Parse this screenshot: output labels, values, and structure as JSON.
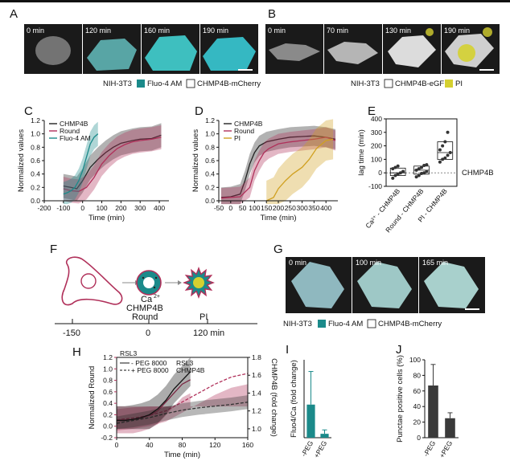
{
  "panel_letters": {
    "A": "A",
    "B": "B",
    "C": "C",
    "D": "D",
    "E": "E",
    "F": "F",
    "G": "G",
    "H": "H",
    "I": "I",
    "J": "J"
  },
  "panelA": {
    "times": [
      "0 min",
      "120 min",
      "160 min",
      "190 min"
    ],
    "caption_cell": "NIH-3T3",
    "caption_l1": "Fluo-4 AM",
    "caption_l2": "CHMP4B-mCherry"
  },
  "panelB": {
    "times": [
      "0 min",
      "70 min",
      "130 min",
      "190 min"
    ],
    "caption_cell": "NIH-3T3",
    "caption_l1": "CHMP4B-eGFP",
    "caption_l2": "PI"
  },
  "panelG": {
    "times": [
      "0 min",
      "100 min",
      "165 min"
    ],
    "caption_cell": "NIH-3T3",
    "caption_l1": "Fluo-4 AM",
    "caption_l2": "CHMP4B-mCherry"
  },
  "colors": {
    "teal": "#1b8a8a",
    "magenta": "#b0305a",
    "yellow": "#d4d030",
    "gray": "#555555",
    "dark": "#222222",
    "shade_teal": "#9fd0cf",
    "shade_pink": "#e8aec6",
    "shade_gray": "#c8c8c8",
    "shade_yellow": "#ecebb8"
  },
  "chart_data": [
    {
      "id": "C",
      "type": "line",
      "xlabel": "Time (min)",
      "ylabel": "Normalized values",
      "xlim": [
        -200,
        450
      ],
      "ylim": [
        0,
        1.2
      ],
      "xticks": [
        -200,
        -100,
        0,
        100,
        200,
        300,
        400
      ],
      "yticks": [
        0.0,
        0.2,
        0.4,
        0.6,
        0.8,
        1.0,
        1.2
      ],
      "legend": [
        "CHMP4B",
        "Round",
        "Fluo-4 AM"
      ],
      "series": [
        {
          "name": "CHMP4B",
          "x": [
            -100,
            -60,
            -30,
            0,
            40,
            80,
            120,
            160,
            200,
            260,
            300,
            360,
            410
          ],
          "y": [
            0.22,
            0.2,
            0.18,
            0.3,
            0.5,
            0.62,
            0.72,
            0.8,
            0.86,
            0.9,
            0.92,
            0.93,
            0.98
          ]
        },
        {
          "name": "Round",
          "x": [
            -100,
            -60,
            -20,
            20,
            60,
            100,
            140,
            180,
            220,
            260,
            300,
            360,
            410
          ],
          "y": [
            0.18,
            0.15,
            0.14,
            0.2,
            0.35,
            0.55,
            0.68,
            0.78,
            0.84,
            0.88,
            0.9,
            0.92,
            0.95
          ]
        },
        {
          "name": "Fluo-4 AM",
          "x": [
            -100,
            -80,
            -60,
            -40,
            -20,
            0,
            20,
            40,
            60,
            80
          ],
          "y": [
            0.1,
            0.12,
            0.15,
            0.2,
            0.3,
            0.45,
            0.65,
            0.85,
            0.95,
            1.0
          ]
        }
      ]
    },
    {
      "id": "D",
      "type": "line",
      "xlabel": "Time (min)",
      "ylabel": "Normalized values",
      "xlim": [
        -50,
        450
      ],
      "ylim": [
        0,
        1.2
      ],
      "xticks": [
        -50,
        0,
        50,
        100,
        150,
        200,
        250,
        300,
        350,
        400
      ],
      "yticks": [
        0.0,
        0.2,
        0.4,
        0.6,
        0.8,
        1.0,
        1.2
      ],
      "legend": [
        "CHMP4B",
        "Round",
        "PI"
      ],
      "series": [
        {
          "name": "CHMP4B",
          "x": [
            -40,
            0,
            40,
            60,
            80,
            100,
            120,
            150,
            200,
            250,
            300,
            350,
            400,
            440
          ],
          "y": [
            0.05,
            0.06,
            0.1,
            0.3,
            0.55,
            0.72,
            0.82,
            0.88,
            0.92,
            0.95,
            0.96,
            0.97,
            0.95,
            0.92
          ]
        },
        {
          "name": "Round",
          "x": [
            -40,
            0,
            40,
            80,
            100,
            120,
            140,
            160,
            200,
            250,
            300,
            350,
            400,
            440
          ],
          "y": [
            0.04,
            0.05,
            0.06,
            0.2,
            0.45,
            0.6,
            0.72,
            0.78,
            0.85,
            0.88,
            0.9,
            0.92,
            0.95,
            0.9
          ]
        },
        {
          "name": "PI",
          "x": [
            150,
            180,
            200,
            230,
            260,
            300,
            330,
            360,
            400,
            430
          ],
          "y": [
            0.0,
            0.05,
            0.18,
            0.3,
            0.4,
            0.5,
            0.62,
            0.78,
            0.9,
            0.92
          ]
        }
      ]
    },
    {
      "id": "E",
      "type": "box",
      "ylabel": "lag time (min)",
      "ylim": [
        -100,
        400
      ],
      "yticks": [
        -100,
        0,
        100,
        200,
        300,
        400
      ],
      "categories": [
        "Ca²⁺ - CHMP4B",
        "Round - CHMP4B",
        "PI - CHMP4B"
      ],
      "ref_label": "CHMP4B",
      "groups": [
        {
          "points": [
            -40,
            -20,
            -10,
            0,
            10,
            30,
            40,
            50
          ],
          "q1": -20,
          "median": 0,
          "q3": 35
        },
        {
          "points": [
            -30,
            -20,
            -5,
            0,
            10,
            20,
            30,
            40,
            55,
            60
          ],
          "q1": -10,
          "median": 20,
          "q3": 50
        },
        {
          "points": [
            80,
            100,
            110,
            130,
            150,
            170,
            200,
            230,
            300
          ],
          "q1": 100,
          "median": 150,
          "q3": 230
        }
      ]
    },
    {
      "id": "F",
      "type": "timeline",
      "ticks": [
        "-150",
        "0",
        "120 min"
      ],
      "labels": [
        "Ca",
        "2+",
        "CHMP4B",
        "Round",
        "PI"
      ]
    },
    {
      "id": "H",
      "type": "line",
      "xlabel": "Time (min)",
      "ylabel_left": "Normalized Round",
      "ylabel_right": "CHMP4B (fold change)",
      "xlim": [
        0,
        160
      ],
      "ylim_left": [
        -0.2,
        1.2
      ],
      "ylim_right": [
        0.9,
        1.8
      ],
      "xticks": [
        0,
        40,
        80,
        120,
        160
      ],
      "yticks_left": [
        -0.2,
        0.0,
        0.2,
        0.4,
        0.6,
        0.8,
        1.0,
        1.2
      ],
      "yticks_right": [
        1.0,
        1.2,
        1.4,
        1.6,
        1.8
      ],
      "legend_title_left": "RSL3",
      "legend_title_right": "RSL3",
      "legend_solid": "- PEG 8000",
      "legend_dashed": "+ PEG 8000",
      "legend_series": "CHMP4B",
      "series": [
        {
          "name": "Round -PEG",
          "x": [
            0,
            10,
            20,
            30,
            40,
            50,
            60,
            70,
            80,
            90
          ],
          "y": [
            0.1,
            0.1,
            0.12,
            0.15,
            0.2,
            0.3,
            0.45,
            0.65,
            0.8,
            0.95
          ]
        },
        {
          "name": "Round +PEG",
          "x": [
            0,
            20,
            40,
            60,
            80,
            100,
            120,
            140,
            160
          ],
          "y": [
            0.05,
            0.1,
            0.15,
            0.22,
            0.28,
            0.32,
            0.35,
            0.38,
            0.42
          ]
        },
        {
          "name": "CHMP4B -PEG",
          "x": [
            0,
            10,
            20,
            30,
            40,
            50,
            60,
            70,
            80,
            90
          ],
          "y": [
            1.1,
            1.1,
            1.1,
            1.12,
            1.15,
            1.2,
            1.3,
            1.4,
            1.5,
            1.55
          ]
        },
        {
          "name": "CHMP4B +PEG",
          "x": [
            0,
            20,
            40,
            60,
            80,
            100,
            120,
            140,
            160
          ],
          "y": [
            1.1,
            1.12,
            1.15,
            1.2,
            1.3,
            1.4,
            1.5,
            1.58,
            1.62
          ]
        }
      ]
    },
    {
      "id": "I",
      "type": "bar",
      "ylabel": "Fluo4/Ca  (fold change)",
      "categories": [
        "-PEG",
        "+PEG"
      ],
      "values": [
        17,
        2
      ],
      "errors": [
        17,
        2
      ],
      "ylim": [
        0,
        40
      ]
    },
    {
      "id": "J",
      "type": "bar",
      "ylabel": "Punctae positive cells (%)",
      "categories": [
        "-PEG",
        "+PEG"
      ],
      "values": [
        67,
        25
      ],
      "errors": [
        27,
        7
      ],
      "ylim": [
        0,
        100
      ],
      "yticks": [
        0,
        20,
        40,
        60,
        80,
        100
      ]
    }
  ]
}
